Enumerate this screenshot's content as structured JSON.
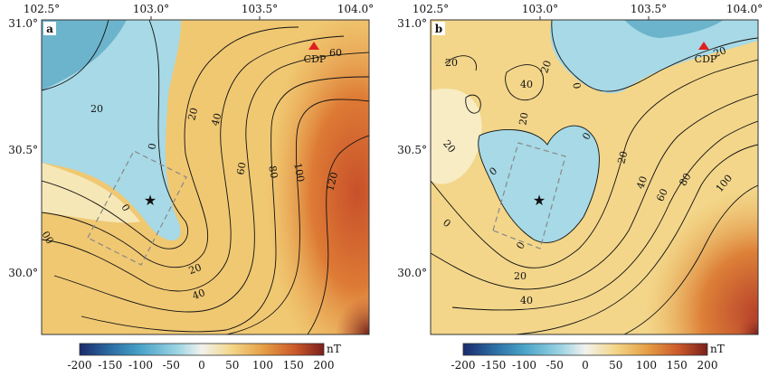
{
  "colors": {
    "ocean_neg": "#7fc7d9",
    "warm": "#e89a3c",
    "hot": "#c9502a",
    "contour": "#111111",
    "cdp": "#e02020",
    "outline": "#999999"
  },
  "colorbar": {
    "unit": "nT",
    "ticks": [
      "-200",
      "-150",
      "-100",
      "-50",
      "0",
      "50",
      "100",
      "150",
      "200"
    ],
    "stops": [
      "#1b2a6b",
      "#2b6ca3",
      "#4aa3c8",
      "#9cd4e3",
      "#f2f2ee",
      "#f3d78a",
      "#e6a046",
      "#cc5a2a",
      "#7a1f1c"
    ]
  },
  "panels": [
    {
      "label": "a",
      "lon_ticks": [
        "102.5°",
        "103.0°",
        "103.5°",
        "104.0°"
      ],
      "lat_ticks": [
        "31.0°",
        "30.5°",
        "30.0°"
      ],
      "marker_label": "CDP",
      "epicenter_icon": "star-icon",
      "contour_labels": [
        "20",
        "0",
        "20",
        "40",
        "60",
        "80",
        "100",
        "120",
        "0",
        "20",
        "40",
        "60",
        "00"
      ]
    },
    {
      "label": "b",
      "lon_ticks": [
        "102.5°",
        "103.0°",
        "103.5°",
        "104.0°"
      ],
      "lat_ticks": [
        "31.0°",
        "30.5°",
        "30.0°"
      ],
      "marker_label": "CDP",
      "epicenter_icon": "star-icon",
      "contour_labels": [
        "20",
        "20",
        "40",
        "0",
        "20",
        "0",
        "20",
        "0",
        "20",
        "0",
        "0",
        "20",
        "40",
        "20",
        "40",
        "60",
        "80",
        "100"
      ]
    }
  ]
}
